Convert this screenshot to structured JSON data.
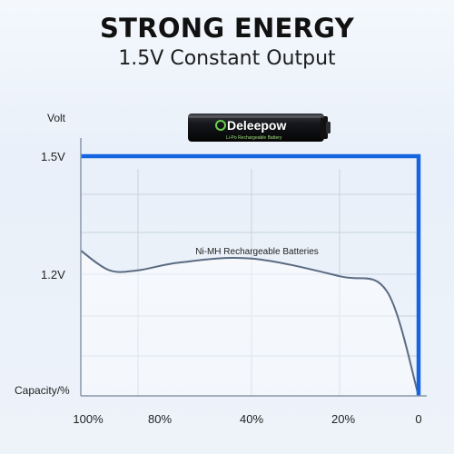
{
  "header": {
    "title": "STRONG ENERGY",
    "subtitle": "1.5V Constant Output"
  },
  "product": {
    "brand": "Deleepow",
    "caption": "Li-Po Rechargeable Battery"
  },
  "chart_data": {
    "type": "line",
    "xlabel": "Capacity/%",
    "ylabel": "Volt",
    "x_ticks": [
      "100%",
      "80%",
      "40%",
      "20%",
      "0"
    ],
    "y_ticks": [
      "1.5V",
      "1.2V"
    ],
    "grid": true,
    "series": [
      {
        "name": "",
        "color": "#1565e0",
        "shape": "constant 1.5V then vertical drop at 0",
        "points": [
          [
            100,
            1.5
          ],
          [
            0,
            1.5
          ],
          [
            0,
            0
          ]
        ]
      },
      {
        "name": "Ni-MH Rechargeable Batteries",
        "color": "#5a6b82",
        "points": [
          [
            100,
            1.26
          ],
          [
            90,
            1.21
          ],
          [
            80,
            1.21
          ],
          [
            65,
            1.23
          ],
          [
            40,
            1.24
          ],
          [
            20,
            1.18
          ],
          [
            8,
            1.03
          ],
          [
            0,
            0
          ]
        ]
      }
    ]
  },
  "colors": {
    "accent": "#1565e0",
    "curve": "#5a6b82",
    "grid": "#c7d2de"
  }
}
